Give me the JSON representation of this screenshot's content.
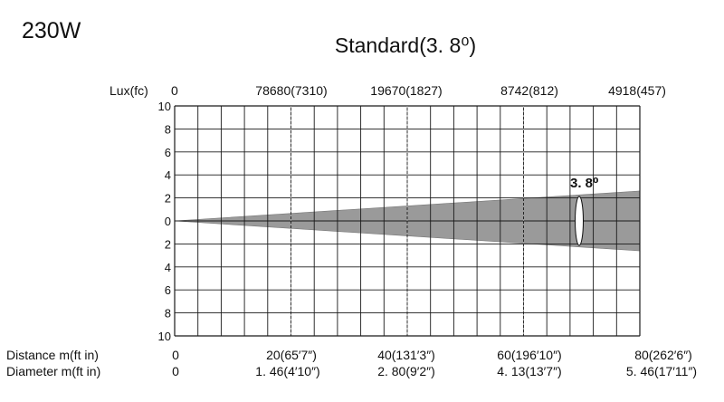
{
  "power_label": "230W",
  "title": "Standard(3. 8⁰)",
  "lux_header": "Lux(fc)",
  "lux_values": [
    "0",
    "78680(7310)",
    "19670(1827)",
    "8742(812)",
    "4918(457)"
  ],
  "y_tick_labels": [
    "10",
    "8",
    "6",
    "4",
    "2",
    "0",
    "2",
    "4",
    "6",
    "8",
    "10"
  ],
  "distance_header": "Distance m(ft in)",
  "distance_values": [
    "0",
    "20(65′7″)",
    "40(131′3″)",
    "60(196′10″)",
    "80(262′6″)"
  ],
  "diameter_header": "Diameter m(ft in)",
  "diameter_values": [
    "0",
    "1. 46(4′10″)",
    "2. 80(9′2″)",
    "4. 13(13′7″)",
    "5. 46(17′11″)"
  ],
  "beam_angle_label": "3. 8⁰",
  "colors": {
    "beam": "#9a9a9a",
    "grid": "#1a1a1a",
    "guide": "#9a9a9a",
    "text": "#111111"
  },
  "chart_data": {
    "type": "beam-diagram",
    "x_unit": "m",
    "x_range": [
      0,
      80
    ],
    "y_range": [
      -10,
      10
    ],
    "distance_m": [
      0,
      20,
      40,
      60,
      80
    ],
    "diameter_m": [
      0,
      1.46,
      2.8,
      4.13,
      5.46
    ],
    "lux": [
      0,
      78680,
      19670,
      8742,
      4918
    ],
    "footcandles": [
      0,
      7310,
      1827,
      812,
      457
    ],
    "beam_angle_deg": 3.8,
    "grid": true
  }
}
